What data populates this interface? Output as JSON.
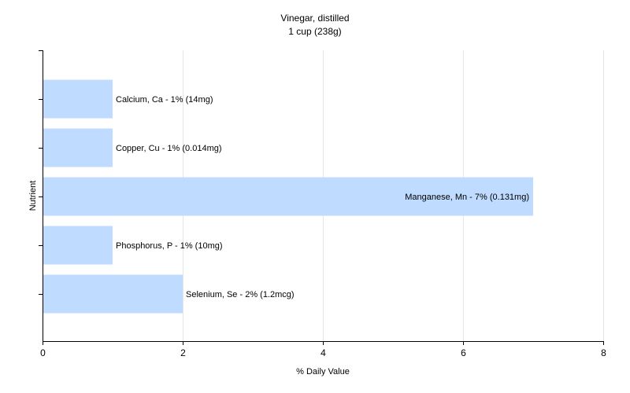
{
  "chart_data": {
    "type": "bar",
    "orientation": "horizontal",
    "title": "Vinegar, distilled",
    "subtitle": "1 cup (238g)",
    "xlabel": "% Daily Value",
    "ylabel": "Nutrient",
    "xlim": [
      0,
      8
    ],
    "xticks": [
      "0",
      "2",
      "4",
      "6",
      "8"
    ],
    "grid": true,
    "legend": "none",
    "colors": {
      "bar": "#bfdbff",
      "grid": "#e6e6e6",
      "axis": "#000000"
    },
    "categories": [
      "Calcium, Ca",
      "Copper, Cu",
      "Manganese, Mn",
      "Phosphorus, P",
      "Selenium, Se"
    ],
    "values": [
      1,
      1,
      7,
      1,
      2
    ],
    "labels": [
      "Calcium, Ca - 1% (14mg)",
      "Copper, Cu - 1% (0.014mg)",
      "Manganese, Mn - 7% (0.131mg)",
      "Phosphorus, P - 1% (10mg)",
      "Selenium, Se - 2% (1.2mcg)"
    ]
  }
}
